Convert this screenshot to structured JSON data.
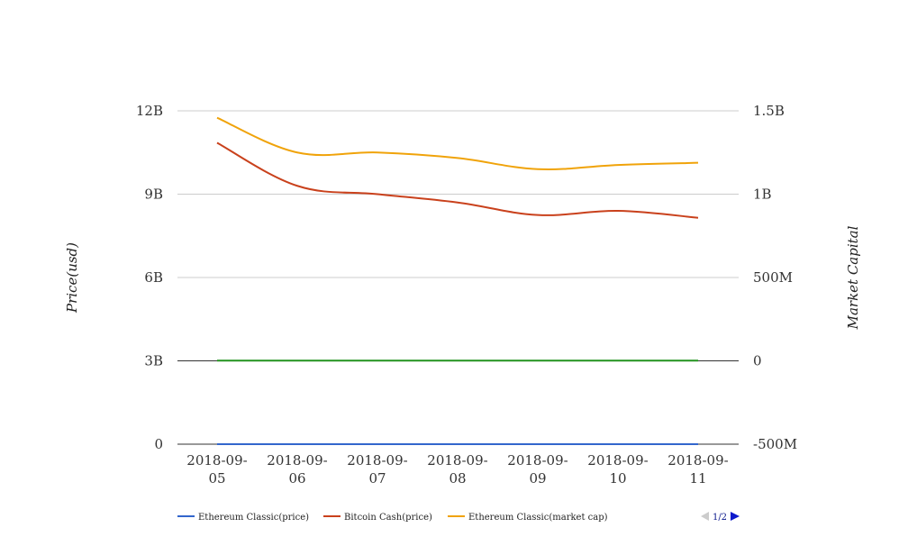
{
  "chart_data": {
    "type": "line",
    "title": "",
    "ylabel_left": "Price(usd)",
    "ylabel_right": "Market Capital",
    "categories": [
      "2018-09-05",
      "2018-09-06",
      "2018-09-07",
      "2018-09-08",
      "2018-09-09",
      "2018-09-10",
      "2018-09-11"
    ],
    "y_left": {
      "range": [
        0,
        12000000000
      ],
      "ticks": [
        0,
        3000000000,
        6000000000,
        9000000000,
        12000000000
      ],
      "tick_labels": [
        "0",
        "3B",
        "6B",
        "9B",
        "12B"
      ]
    },
    "y_right": {
      "range": [
        -500000000,
        1500000000
      ],
      "ticks": [
        -500000000,
        0,
        500000000,
        1000000000,
        1500000000
      ],
      "tick_labels": [
        "-500M",
        "0",
        "500M",
        "1B",
        "1.5B"
      ]
    },
    "series": [
      {
        "name": "Ethereum Classic(price)",
        "axis": "left",
        "color": "#3366cc",
        "values": [
          13,
          12,
          12,
          12,
          11,
          11,
          11
        ]
      },
      {
        "name": "Bitcoin Cash(price)",
        "axis": "left",
        "color": "#c9411c",
        "values": [
          10850000000,
          9300000000,
          9000000000,
          8700000000,
          8250000000,
          8400000000,
          8150000000
        ]
      },
      {
        "name": "Ethereum Classic(market cap)",
        "axis": "left",
        "color": "#f0a30a",
        "values": [
          11750000000,
          10500000000,
          10500000000,
          10300000000,
          9900000000,
          10050000000,
          10130000000
        ]
      },
      {
        "name": "",
        "axis": "right",
        "color": "#22931f",
        "values": [
          1400000,
          1300000,
          1300000,
          1300000,
          1200000,
          1200000,
          1200000
        ]
      }
    ],
    "legend": {
      "position": "bottom-left",
      "page": "1/2"
    },
    "grid": true
  }
}
